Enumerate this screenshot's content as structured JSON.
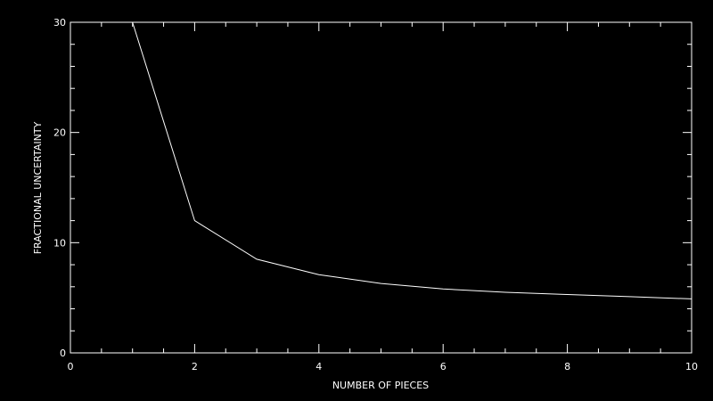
{
  "chart_data": {
    "type": "line",
    "xlabel": "NUMBER OF PIECES",
    "ylabel": "FRACTIONAL UNCERTAINTY",
    "xlim": [
      0,
      10
    ],
    "ylim": [
      0,
      30
    ],
    "x_ticks": [
      0,
      2,
      4,
      6,
      8,
      10
    ],
    "y_ticks": [
      0,
      10,
      20,
      30
    ],
    "x_tick_labels": [
      "0",
      "2",
      "4",
      "6",
      "8",
      "10"
    ],
    "y_tick_labels": [
      "0",
      "10",
      "20",
      "30"
    ],
    "x_minor_step": 0.5,
    "y_minor_step": 2,
    "grid": false,
    "series": [
      {
        "x": [
          1,
          2,
          3,
          4,
          5,
          6,
          7,
          8,
          9,
          10
        ],
        "y": [
          30.0,
          12.0,
          8.5,
          7.1,
          6.3,
          5.8,
          5.5,
          5.3,
          5.1,
          4.9
        ]
      }
    ],
    "colors": {
      "background": "#000000",
      "foreground": "#ffffff"
    }
  }
}
